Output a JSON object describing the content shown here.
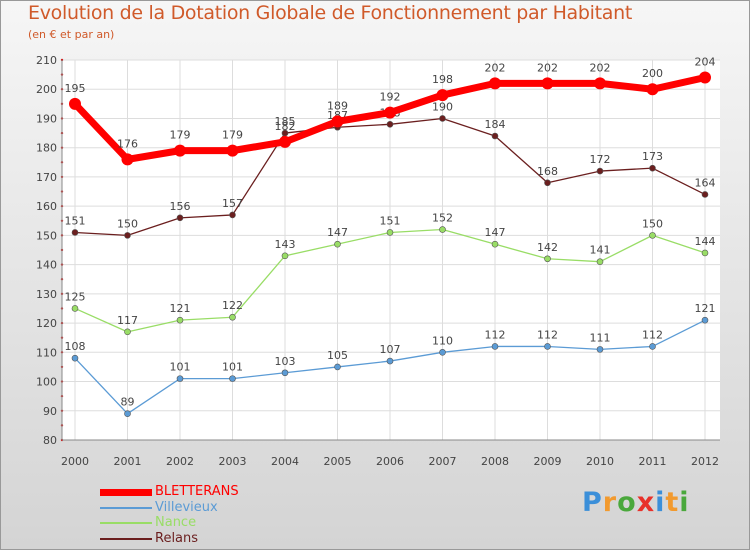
{
  "chart_data": {
    "type": "line",
    "title": "Evolution de la Dotation Globale de Fonctionnement par Habitant",
    "subtitle": "(en € et par an)",
    "xlabel": "",
    "ylabel": "",
    "categories": [
      "2000",
      "2001",
      "2002",
      "2003",
      "2004",
      "2005",
      "2006",
      "2007",
      "2008",
      "2009",
      "2010",
      "2011",
      "2012"
    ],
    "ylim": [
      80,
      210
    ],
    "yticks": [
      80,
      90,
      100,
      110,
      120,
      130,
      140,
      150,
      160,
      170,
      180,
      190,
      200,
      210
    ],
    "grid": true,
    "legend_position": "bottom-left",
    "series": [
      {
        "name": "BLETTERANS",
        "color": "#ff0000",
        "values": [
          195,
          176,
          179,
          179,
          182,
          189,
          192,
          198,
          202,
          202,
          202,
          200,
          204
        ]
      },
      {
        "name": "Villevieux",
        "color": "#5b9bd5",
        "values": [
          108,
          89,
          101,
          101,
          103,
          105,
          107,
          110,
          112,
          112,
          111,
          112,
          121
        ]
      },
      {
        "name": "Nance",
        "color": "#99dd66",
        "values": [
          125,
          117,
          121,
          122,
          143,
          147,
          151,
          152,
          147,
          142,
          141,
          150,
          144
        ]
      },
      {
        "name": "Relans",
        "color": "#6b1f1f",
        "values": [
          151,
          150,
          156,
          157,
          185,
          187,
          188,
          190,
          184,
          168,
          172,
          173,
          164
        ]
      }
    ]
  },
  "logo": {
    "text": "Proxiti",
    "letters": [
      {
        "ch": "P",
        "color": "#3b8fd9"
      },
      {
        "ch": "r",
        "color": "#f29a2e"
      },
      {
        "ch": "o",
        "color": "#4aa83c"
      },
      {
        "ch": "x",
        "color": "#e8312a"
      },
      {
        "ch": "i",
        "color": "#3b8fd9"
      },
      {
        "ch": "t",
        "color": "#f29a2e"
      },
      {
        "ch": "i",
        "color": "#4aa83c"
      }
    ]
  }
}
